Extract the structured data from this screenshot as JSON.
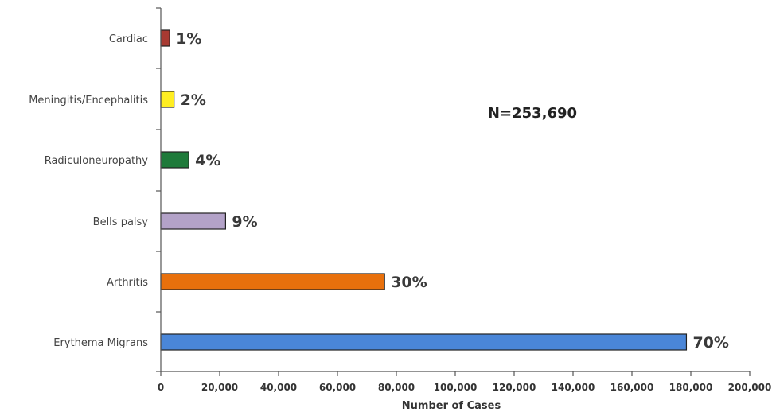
{
  "chart_data": {
    "type": "bar",
    "orientation": "horizontal",
    "categories": [
      "Erythema Migrans",
      "Arthritis",
      "Bells palsy",
      "Radiculoneuropathy",
      "Meningitis/Encephalitis",
      "Cardiac"
    ],
    "values": [
      178500,
      76000,
      22000,
      9500,
      4500,
      3000
    ],
    "data_labels": [
      "70%",
      "30%",
      "9%",
      "4%",
      "2%",
      "1%"
    ],
    "colors": [
      "#4a86d8",
      "#e8700c",
      "#b3a2c8",
      "#1e7a3a",
      "#ffee22",
      "#a83a32"
    ],
    "xlabel": "Number of Cases",
    "ylabel": "",
    "xlim": [
      0,
      200000
    ],
    "xticks": [
      0,
      20000,
      40000,
      60000,
      80000,
      100000,
      120000,
      140000,
      160000,
      180000,
      200000
    ],
    "xtick_labels": [
      "0",
      "20,000",
      "40,000",
      "60,000",
      "80,000",
      "100,000",
      "120,000",
      "140,000",
      "160,000",
      "180,000",
      "200,000"
    ],
    "annotation": "N=253,690",
    "grid": false
  }
}
